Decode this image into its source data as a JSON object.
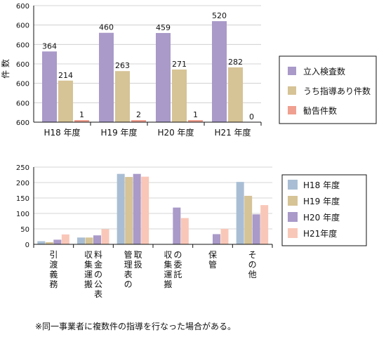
{
  "chart_data": [
    {
      "type": "bar",
      "ylabel": "件 数",
      "ytick_labels": [
        "600",
        "600",
        "600",
        "600",
        "600",
        "600",
        "600"
      ],
      "categories": [
        "H18 年度",
        "H19 年度",
        "H20 年度",
        "H21 年度"
      ],
      "series": [
        {
          "name": "立入検査数",
          "color": "#a99ac9",
          "values": [
            364,
            460,
            459,
            520
          ]
        },
        {
          "name": "うち指導あり件数",
          "color": "#d6c396",
          "values": [
            214,
            263,
            271,
            282
          ]
        },
        {
          "name": "勧告件数",
          "color": "#f0a090",
          "values": [
            1,
            2,
            1,
            0
          ]
        }
      ],
      "ylim": [
        0,
        600
      ],
      "legend": "right"
    },
    {
      "type": "bar",
      "categories": [
        "引渡義務",
        "収集運搬料金の公表",
        "管理表の取扱",
        "収集運搬の委託",
        "保管",
        "その他"
      ],
      "series": [
        {
          "name": "H18 年度",
          "color": "#a9bed4",
          "values": [
            10,
            22,
            228,
            0,
            0,
            202
          ]
        },
        {
          "name": "H19 年度",
          "color": "#d6c396",
          "values": [
            7,
            22,
            218,
            0,
            0,
            157
          ]
        },
        {
          "name": "H20 年度",
          "color": "#a99ac9",
          "values": [
            15,
            29,
            228,
            119,
            33,
            97
          ]
        },
        {
          "name": "H21年度",
          "color": "#f9c7b8",
          "values": [
            32,
            49,
            219,
            85,
            50,
            127
          ]
        }
      ],
      "yticks": [
        0,
        50,
        100,
        150,
        200,
        250
      ],
      "ylim": [
        0,
        250
      ],
      "legend": "right"
    }
  ],
  "note": "※同一事業者に複数件の指導を行なった場合がある。"
}
